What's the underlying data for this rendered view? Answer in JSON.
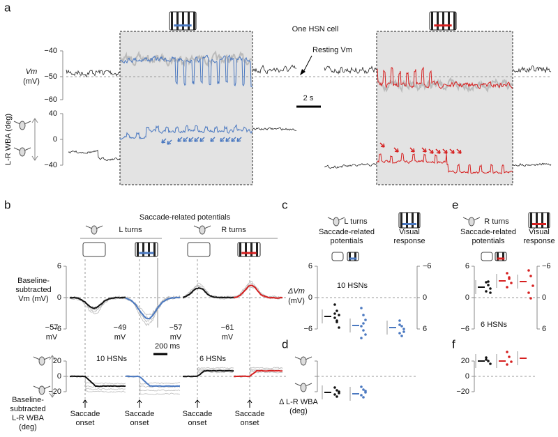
{
  "panel_a": {
    "label": "a",
    "cell": "One HSN cell",
    "resting": "Resting Vm",
    "vm_ticks": [
      "−40",
      "−50",
      "−60"
    ],
    "vm_label": [
      "Vm",
      "(mV)"
    ],
    "wba_ticks": [
      "40",
      "0",
      "−40"
    ],
    "wba_label": "L-R WBA (deg)",
    "scale": "2 s"
  },
  "panel_b": {
    "label": "b",
    "title": "Saccade-related potentials",
    "left_turns": "L turns",
    "right_turns": "R turns",
    "vm_ticks": [
      "6",
      "0",
      "−6"
    ],
    "vm_label": [
      "Baseline-",
      "subtracted",
      "Vm (mV)"
    ],
    "resting": [
      [
        "−57",
        "mV"
      ],
      [
        "−49",
        "mV"
      ],
      [
        "−57",
        "mV"
      ],
      [
        "−61",
        "mV"
      ]
    ],
    "scale": "200 ms",
    "n_left": "10 HSNs",
    "n_right": "6 HSNs",
    "wba_ticks": [
      "20",
      "0",
      "−20"
    ],
    "wba_label": [
      "Baseline-",
      "subtracted",
      "L-R WBA",
      "(deg)"
    ],
    "onset": [
      [
        "Saccade",
        "onset"
      ],
      [
        "Saccade",
        "onset"
      ],
      [
        "Saccade",
        "onset"
      ],
      [
        "Saccade",
        "onset"
      ]
    ]
  },
  "panel_c": {
    "label": "c",
    "turns": "L turns",
    "saccade": [
      "Saccade-related",
      "potentials"
    ],
    "visual": [
      "Visual",
      "response"
    ],
    "left_ticks": [
      "6",
      "0",
      "−6"
    ],
    "right_ticks": [
      "−6",
      "0",
      "6"
    ],
    "y_label": [
      "ΔVm",
      "(mV)"
    ],
    "n": "10 HSNs"
  },
  "panel_d": {
    "label": "d",
    "y_label": [
      "Δ L-R WBA",
      "(deg)"
    ]
  },
  "panel_e": {
    "label": "e",
    "turns": "R turns",
    "saccade": [
      "Saccade-related",
      "potentials"
    ],
    "visual": [
      "Visual",
      "response"
    ],
    "left_ticks": [
      "6",
      "0",
      "−6"
    ],
    "right_ticks": [
      "−6",
      "0",
      "6"
    ],
    "n": "6 HSNs"
  },
  "panel_f": {
    "label": "f",
    "ticks": [
      "20",
      "0",
      "−20"
    ]
  }
}
